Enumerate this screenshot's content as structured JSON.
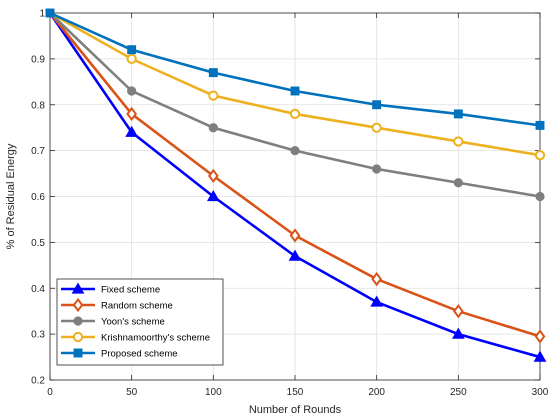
{
  "chart_data": {
    "type": "line",
    "title": "",
    "xlabel": "Number of Rounds",
    "ylabel": "% of Residual Energy",
    "xlim": [
      0,
      300
    ],
    "ylim": [
      0.2,
      1.0
    ],
    "xticks": [
      0,
      50,
      100,
      150,
      200,
      250,
      300
    ],
    "yticks": [
      0.2,
      0.3,
      0.4,
      0.5,
      0.6,
      0.7,
      0.8,
      0.9,
      1
    ],
    "xtick_labels": [
      "0",
      "50",
      "100",
      "150",
      "200",
      "250",
      "300"
    ],
    "ytick_labels": [
      "0.2",
      "0.3",
      "0.4",
      "0.5",
      "0.6",
      "0.7",
      "0.8",
      "0.9",
      "1"
    ],
    "grid": true,
    "legend_position": "bottom-left",
    "x": [
      0,
      50,
      100,
      150,
      200,
      250,
      300
    ],
    "series": [
      {
        "name": "Fixed scheme",
        "marker": "triangle",
        "color": "#0000ff",
        "values": [
          1.0,
          0.74,
          0.6,
          0.47,
          0.37,
          0.3,
          0.25
        ]
      },
      {
        "name": "Random scheme",
        "marker": "diamond",
        "color": "#d95319",
        "values": [
          1.0,
          0.78,
          0.645,
          0.515,
          0.42,
          0.35,
          0.295
        ]
      },
      {
        "name": "Yoon's scheme",
        "marker": "circle",
        "color": "#7f7f7f",
        "values": [
          1.0,
          0.83,
          0.75,
          0.7,
          0.66,
          0.63,
          0.6
        ]
      },
      {
        "name": "Krishnamoorthy's scheme",
        "marker": "open-circle",
        "color": "#edb120",
        "values": [
          1.0,
          0.9,
          0.82,
          0.78,
          0.75,
          0.72,
          0.69
        ]
      },
      {
        "name": "Proposed scheme",
        "marker": "square",
        "color": "#0072bd",
        "values": [
          1.0,
          0.92,
          0.87,
          0.83,
          0.8,
          0.78,
          0.755
        ]
      }
    ]
  }
}
